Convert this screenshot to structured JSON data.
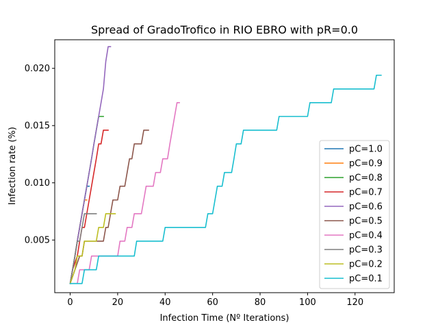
{
  "chart_data": {
    "type": "line",
    "title": "Spread of GradoTrofico in RIO EBRO with pR=0.0",
    "xlabel": "Infection Time (Nº Iterations)",
    "ylabel": "Infection rate (%)",
    "xlim": [
      -6.5,
      136.5
    ],
    "ylim": [
      0.0004,
      0.0225
    ],
    "xticks": [
      0,
      20,
      40,
      60,
      80,
      100,
      120
    ],
    "yticks": [
      0.005,
      0.01,
      0.015,
      0.02
    ],
    "ytick_labels": [
      "0.005",
      "0.010",
      "0.015",
      "0.020"
    ],
    "grid": false,
    "legend_position": "lower-right",
    "series": [
      {
        "name": "pC=1.0",
        "color": "#1f77b4",
        "points": [
          [
            0,
            0.0012
          ],
          [
            1,
            0.0024
          ],
          [
            2,
            0.0036
          ],
          [
            3,
            0.0049
          ],
          [
            4,
            0.0061
          ],
          [
            5,
            0.0073
          ],
          [
            6,
            0.0085
          ],
          [
            7,
            0.0097
          ],
          [
            8,
            0.0097
          ]
        ]
      },
      {
        "name": "pC=0.9",
        "color": "#ff7f0e",
        "points": [
          [
            0,
            0.0012
          ],
          [
            1,
            0.0024
          ],
          [
            2,
            0.0036
          ],
          [
            3,
            0.0049
          ],
          [
            4,
            0.0061
          ],
          [
            5,
            0.0073
          ],
          [
            6,
            0.0085
          ],
          [
            7,
            0.0085
          ]
        ]
      },
      {
        "name": "pC=0.8",
        "color": "#2ca02c",
        "points": [
          [
            0,
            0.0012
          ],
          [
            1,
            0.0024
          ],
          [
            2,
            0.0036
          ],
          [
            3,
            0.0049
          ],
          [
            4,
            0.0061
          ],
          [
            5,
            0.0073
          ],
          [
            6,
            0.0085
          ],
          [
            7,
            0.0097
          ],
          [
            8,
            0.0109
          ],
          [
            9,
            0.0121
          ],
          [
            10,
            0.0134
          ],
          [
            11,
            0.0146
          ],
          [
            12,
            0.0158
          ],
          [
            14,
            0.0158
          ]
        ]
      },
      {
        "name": "pC=0.7",
        "color": "#d62728",
        "points": [
          [
            0,
            0.0012
          ],
          [
            1,
            0.0024
          ],
          [
            3,
            0.0036
          ],
          [
            4,
            0.0049
          ],
          [
            5,
            0.0061
          ],
          [
            6,
            0.0061
          ],
          [
            7,
            0.0073
          ],
          [
            8,
            0.0085
          ],
          [
            9,
            0.0097
          ],
          [
            10,
            0.0109
          ],
          [
            11,
            0.0121
          ],
          [
            12,
            0.0134
          ],
          [
            13,
            0.0134
          ],
          [
            14,
            0.0146
          ],
          [
            16,
            0.0146
          ]
        ]
      },
      {
        "name": "pC=0.6",
        "color": "#9467bd",
        "points": [
          [
            0,
            0.0012
          ],
          [
            1,
            0.0024
          ],
          [
            2,
            0.0036
          ],
          [
            3,
            0.0049
          ],
          [
            4,
            0.0061
          ],
          [
            5,
            0.0073
          ],
          [
            6,
            0.0085
          ],
          [
            7,
            0.0097
          ],
          [
            8,
            0.0109
          ],
          [
            9,
            0.0121
          ],
          [
            10,
            0.0134
          ],
          [
            11,
            0.0146
          ],
          [
            12,
            0.0158
          ],
          [
            13,
            0.017
          ],
          [
            14,
            0.0182
          ],
          [
            15,
            0.0206
          ],
          [
            16,
            0.0219
          ],
          [
            17,
            0.0219
          ]
        ]
      },
      {
        "name": "pC=0.5",
        "color": "#8c564b",
        "points": [
          [
            0,
            0.0012
          ],
          [
            2,
            0.0024
          ],
          [
            4,
            0.0036
          ],
          [
            5,
            0.0036
          ],
          [
            6,
            0.0049
          ],
          [
            14,
            0.0049
          ],
          [
            15,
            0.0061
          ],
          [
            16,
            0.0061
          ],
          [
            17,
            0.0073
          ],
          [
            18,
            0.0085
          ],
          [
            20,
            0.0085
          ],
          [
            21,
            0.0097
          ],
          [
            23,
            0.0097
          ],
          [
            24,
            0.0109
          ],
          [
            25,
            0.0121
          ],
          [
            26,
            0.0121
          ],
          [
            27,
            0.0134
          ],
          [
            30,
            0.0134
          ],
          [
            31,
            0.0146
          ],
          [
            33,
            0.0146
          ]
        ]
      },
      {
        "name": "pC=0.4",
        "color": "#e377c2",
        "points": [
          [
            0,
            0.0012
          ],
          [
            3,
            0.0012
          ],
          [
            4,
            0.0024
          ],
          [
            8,
            0.0024
          ],
          [
            9,
            0.0036
          ],
          [
            20,
            0.0036
          ],
          [
            21,
            0.0049
          ],
          [
            23,
            0.0049
          ],
          [
            24,
            0.0061
          ],
          [
            26,
            0.0061
          ],
          [
            27,
            0.0073
          ],
          [
            30,
            0.0073
          ],
          [
            31,
            0.0085
          ],
          [
            32,
            0.0097
          ],
          [
            35,
            0.0097
          ],
          [
            36,
            0.0109
          ],
          [
            38,
            0.0109
          ],
          [
            39,
            0.0121
          ],
          [
            41,
            0.0121
          ],
          [
            42,
            0.0134
          ],
          [
            43,
            0.0146
          ],
          [
            44,
            0.0158
          ],
          [
            45,
            0.017
          ],
          [
            46,
            0.017
          ]
        ]
      },
      {
        "name": "pC=0.3",
        "color": "#7f7f7f",
        "points": [
          [
            0,
            0.0012
          ],
          [
            1,
            0.0024
          ],
          [
            2,
            0.0036
          ],
          [
            3,
            0.0049
          ],
          [
            4,
            0.0049
          ],
          [
            5,
            0.0061
          ],
          [
            6,
            0.0073
          ],
          [
            11,
            0.0073
          ]
        ]
      },
      {
        "name": "pC=0.2",
        "color": "#bcbd22",
        "points": [
          [
            0,
            0.0012
          ],
          [
            2,
            0.0024
          ],
          [
            3,
            0.0036
          ],
          [
            5,
            0.0036
          ],
          [
            6,
            0.0049
          ],
          [
            11,
            0.0049
          ],
          [
            12,
            0.0061
          ],
          [
            14,
            0.0061
          ],
          [
            15,
            0.0073
          ],
          [
            19,
            0.0073
          ]
        ]
      },
      {
        "name": "pC=0.1",
        "color": "#17becf",
        "points": [
          [
            0,
            0.0012
          ],
          [
            5,
            0.0012
          ],
          [
            6,
            0.0024
          ],
          [
            11,
            0.0024
          ],
          [
            12,
            0.0036
          ],
          [
            27,
            0.0036
          ],
          [
            28,
            0.0049
          ],
          [
            39,
            0.0049
          ],
          [
            40,
            0.0061
          ],
          [
            57,
            0.0061
          ],
          [
            58,
            0.0073
          ],
          [
            60,
            0.0073
          ],
          [
            61,
            0.0085
          ],
          [
            62,
            0.0097
          ],
          [
            64,
            0.0097
          ],
          [
            65,
            0.0109
          ],
          [
            68,
            0.0109
          ],
          [
            69,
            0.0121
          ],
          [
            70,
            0.0134
          ],
          [
            72,
            0.0134
          ],
          [
            73,
            0.0146
          ],
          [
            87,
            0.0146
          ],
          [
            88,
            0.0158
          ],
          [
            100,
            0.0158
          ],
          [
            101,
            0.017
          ],
          [
            110,
            0.017
          ],
          [
            111,
            0.0182
          ],
          [
            128,
            0.0182
          ],
          [
            129,
            0.0194
          ],
          [
            131,
            0.0194
          ]
        ]
      }
    ]
  }
}
